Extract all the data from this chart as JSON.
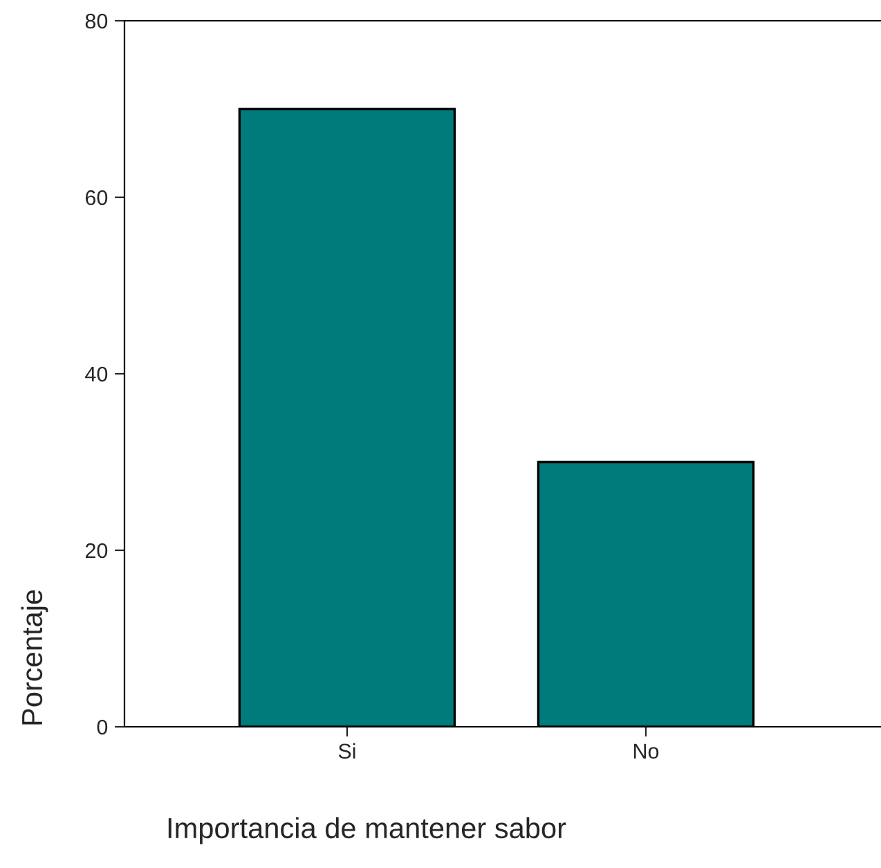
{
  "chart_data": {
    "type": "bar",
    "categories": [
      "Si",
      "No"
    ],
    "values": [
      70,
      30
    ],
    "color": "#007b7b",
    "xlabel": "Importancia de mantener sabor",
    "ylabel": "Porcentaje",
    "ylim": [
      0,
      80
    ],
    "yticks": [
      0,
      20,
      40,
      60,
      80
    ],
    "grid": false
  }
}
